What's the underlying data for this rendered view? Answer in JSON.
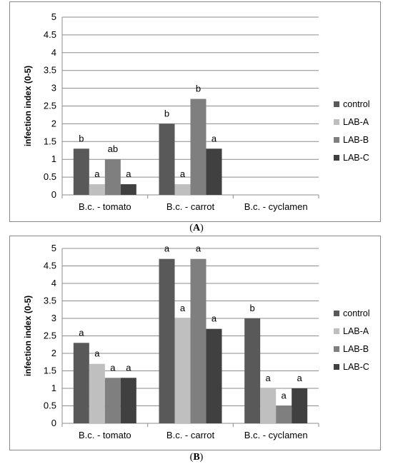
{
  "chart_data": [
    {
      "id": "A",
      "type": "bar",
      "panel_label": "A",
      "ylabel": "infection index (0-5)",
      "ylim": [
        0,
        5
      ],
      "yticks": [
        "0",
        "0.5",
        "1",
        "1.5",
        "2",
        "2.5",
        "3",
        "3.5",
        "4",
        "4.5",
        "5"
      ],
      "grid": true,
      "legend_position": "right",
      "categories": [
        "B.c. - tomato",
        "B.c. - carrot",
        "B.c. - cyclamen"
      ],
      "series": [
        {
          "name": "control",
          "color": "#595959",
          "values": [
            1.3,
            2.0,
            null
          ],
          "labels": [
            "b",
            "b",
            ""
          ]
        },
        {
          "name": "LAB-A",
          "color": "#bfbfbf",
          "values": [
            0.3,
            0.3,
            null
          ],
          "labels": [
            "a",
            "a",
            ""
          ]
        },
        {
          "name": "LAB-B",
          "color": "#7f7f7f",
          "values": [
            1.0,
            2.7,
            null
          ],
          "labels": [
            "ab",
            "b",
            ""
          ]
        },
        {
          "name": "LAB-C",
          "color": "#404040",
          "values": [
            0.3,
            1.3,
            null
          ],
          "labels": [
            "a",
            "a",
            ""
          ]
        }
      ]
    },
    {
      "id": "B",
      "type": "bar",
      "panel_label": "B",
      "ylabel": "infection index (0-5)",
      "ylim": [
        0,
        5
      ],
      "yticks": [
        "0",
        "0.5",
        "1",
        "1.5",
        "2",
        "2.5",
        "3",
        "3.5",
        "4",
        "4.5",
        "5"
      ],
      "grid": true,
      "legend_position": "right",
      "categories": [
        "B.c. - tomato",
        "B.c. - carrot",
        "B.c. - cyclamen"
      ],
      "series": [
        {
          "name": "control",
          "color": "#595959",
          "values": [
            2.3,
            4.7,
            3.0
          ],
          "labels": [
            "a",
            "a",
            "b"
          ]
        },
        {
          "name": "LAB-A",
          "color": "#bfbfbf",
          "values": [
            1.7,
            3.0,
            1.0
          ],
          "labels": [
            "a",
            "a",
            "a"
          ]
        },
        {
          "name": "LAB-B",
          "color": "#7f7f7f",
          "values": [
            1.3,
            4.7,
            0.5
          ],
          "labels": [
            "a",
            "a",
            "a"
          ]
        },
        {
          "name": "LAB-C",
          "color": "#404040",
          "values": [
            1.3,
            2.7,
            1.0
          ],
          "labels": [
            "a",
            "a",
            "a"
          ]
        }
      ]
    }
  ]
}
